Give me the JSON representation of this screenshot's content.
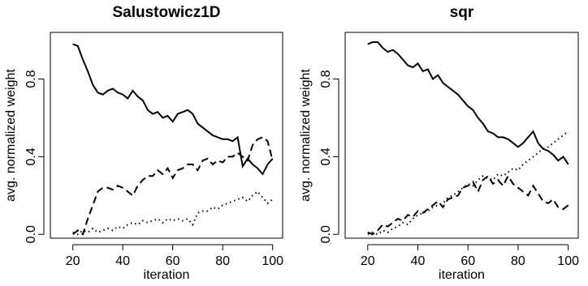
{
  "chart_data": [
    {
      "type": "line",
      "title": "Salustowicz1D",
      "xlabel": "iteration",
      "ylabel": "avg. normalized weight",
      "x": [
        20,
        22,
        24,
        26,
        28,
        30,
        32,
        34,
        36,
        38,
        40,
        42,
        44,
        46,
        48,
        50,
        52,
        54,
        56,
        58,
        60,
        62,
        64,
        66,
        68,
        70,
        72,
        74,
        76,
        78,
        80,
        82,
        84,
        86,
        88,
        90,
        92,
        94,
        96,
        98,
        100
      ],
      "xlim": [
        11,
        104
      ],
      "ylim": [
        -0.02,
        1.04
      ],
      "xticks": [
        20,
        40,
        60,
        80,
        100
      ],
      "yticks": [
        {
          "value": 0,
          "label": "0.0"
        },
        0.4,
        0.8
      ],
      "series": [
        {
          "color": "#000000",
          "dash": "solid",
          "values": [
            0.98,
            0.97,
            0.9,
            0.84,
            0.77,
            0.73,
            0.72,
            0.74,
            0.75,
            0.73,
            0.72,
            0.7,
            0.74,
            0.71,
            0.69,
            0.64,
            0.62,
            0.63,
            0.6,
            0.61,
            0.58,
            0.62,
            0.63,
            0.64,
            0.62,
            0.57,
            0.55,
            0.53,
            0.51,
            0.5,
            0.49,
            0.49,
            0.48,
            0.5,
            0.35,
            0.39,
            0.36,
            0.34,
            0.31,
            0.36,
            0.39
          ]
        },
        {
          "color": "#000000",
          "dash": "dashed",
          "values": [
            0.0,
            0.02,
            0.0,
            0.08,
            0.15,
            0.22,
            0.24,
            0.24,
            0.23,
            0.25,
            0.24,
            0.22,
            0.2,
            0.25,
            0.28,
            0.3,
            0.3,
            0.33,
            0.31,
            0.34,
            0.29,
            0.33,
            0.34,
            0.36,
            0.36,
            0.33,
            0.38,
            0.39,
            0.36,
            0.38,
            0.37,
            0.4,
            0.4,
            0.42,
            0.4,
            0.38,
            0.46,
            0.49,
            0.5,
            0.48,
            0.38
          ]
        },
        {
          "color": "#000000",
          "dash": "dotted",
          "values": [
            0.01,
            0.0,
            0.02,
            0.01,
            0.03,
            0.01,
            0.02,
            0.03,
            0.02,
            0.04,
            0.03,
            0.05,
            0.06,
            0.05,
            0.07,
            0.06,
            0.07,
            0.08,
            0.06,
            0.08,
            0.07,
            0.08,
            0.07,
            0.08,
            0.05,
            0.11,
            0.12,
            0.12,
            0.14,
            0.13,
            0.15,
            0.16,
            0.17,
            0.18,
            0.19,
            0.17,
            0.2,
            0.22,
            0.19,
            0.16,
            0.18
          ]
        }
      ]
    },
    {
      "type": "line",
      "title": "sqr",
      "xlabel": "iteration",
      "ylabel": "avg. normalized weight",
      "x": [
        20,
        22,
        24,
        26,
        28,
        30,
        32,
        34,
        36,
        38,
        40,
        42,
        44,
        46,
        48,
        50,
        52,
        54,
        56,
        58,
        60,
        62,
        64,
        66,
        68,
        70,
        72,
        74,
        76,
        78,
        80,
        82,
        84,
        86,
        88,
        90,
        92,
        94,
        96,
        98,
        100
      ],
      "xlim": [
        11,
        104
      ],
      "ylim": [
        -0.02,
        1.04
      ],
      "xticks": [
        20,
        40,
        60,
        80,
        100
      ],
      "yticks": [
        {
          "value": 0,
          "label": "0.0"
        },
        0.4,
        0.8
      ],
      "series": [
        {
          "color": "#000000",
          "dash": "solid",
          "values": [
            0.98,
            0.99,
            0.99,
            0.96,
            0.94,
            0.95,
            0.93,
            0.9,
            0.87,
            0.86,
            0.88,
            0.84,
            0.85,
            0.8,
            0.82,
            0.78,
            0.76,
            0.74,
            0.72,
            0.69,
            0.66,
            0.64,
            0.6,
            0.57,
            0.53,
            0.52,
            0.5,
            0.5,
            0.49,
            0.47,
            0.45,
            0.47,
            0.5,
            0.53,
            0.47,
            0.44,
            0.43,
            0.41,
            0.38,
            0.4,
            0.36
          ]
        },
        {
          "color": "#000000",
          "dash": "dashed",
          "values": [
            0.01,
            0.0,
            0.02,
            0.05,
            0.04,
            0.06,
            0.08,
            0.07,
            0.1,
            0.09,
            0.12,
            0.11,
            0.13,
            0.15,
            0.17,
            0.14,
            0.18,
            0.19,
            0.2,
            0.24,
            0.25,
            0.27,
            0.22,
            0.28,
            0.3,
            0.26,
            0.28,
            0.25,
            0.3,
            0.26,
            0.24,
            0.22,
            0.2,
            0.25,
            0.21,
            0.17,
            0.16,
            0.18,
            0.14,
            0.13,
            0.15
          ]
        },
        {
          "color": "#000000",
          "dash": "dotted",
          "values": [
            0.0,
            0.01,
            0.0,
            0.02,
            0.01,
            0.03,
            0.04,
            0.06,
            0.05,
            0.08,
            0.1,
            0.11,
            0.12,
            0.14,
            0.15,
            0.16,
            0.19,
            0.2,
            0.22,
            0.24,
            0.26,
            0.25,
            0.28,
            0.3,
            0.29,
            0.28,
            0.31,
            0.3,
            0.32,
            0.34,
            0.33,
            0.36,
            0.38,
            0.4,
            0.42,
            0.44,
            0.45,
            0.47,
            0.49,
            0.51,
            0.53
          ]
        }
      ]
    }
  ]
}
